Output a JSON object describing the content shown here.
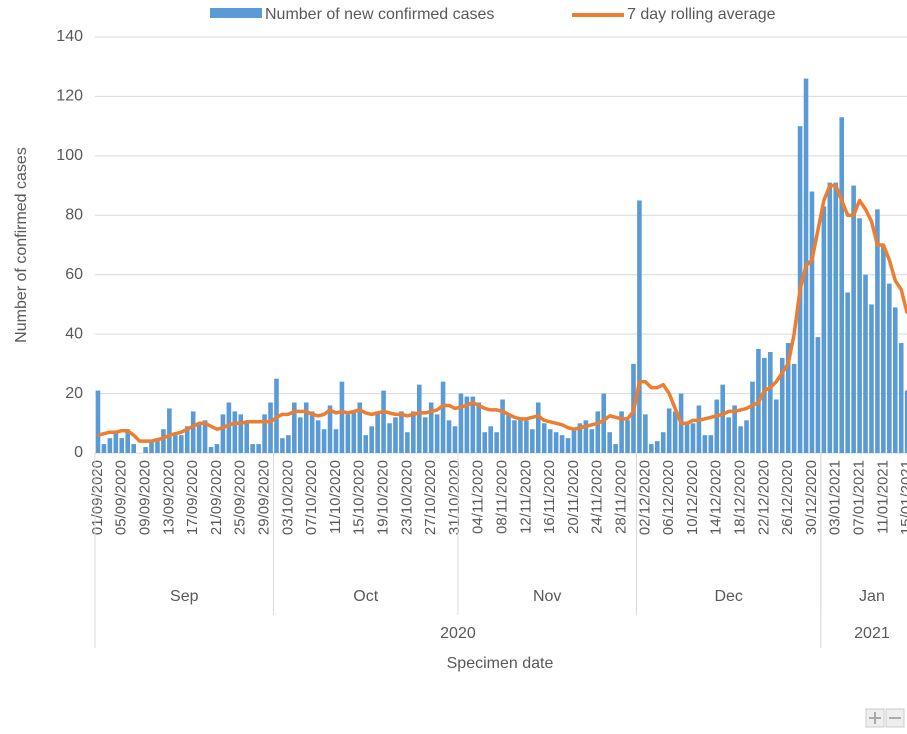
{
  "chart_data": {
    "type": "bar_line",
    "y_label": "Number of confirmed cases",
    "x_label": "Specimen date",
    "ylim": [
      0,
      140
    ],
    "yticks": [
      0,
      20,
      40,
      60,
      80,
      100,
      120,
      140
    ],
    "grid": true,
    "legend": "top",
    "categories": [
      "01/09/2020",
      null,
      null,
      null,
      "05/09/2020",
      null,
      null,
      null,
      "09/09/2020",
      null,
      null,
      null,
      "13/09/2020",
      null,
      null,
      null,
      "17/09/2020",
      null,
      null,
      null,
      "21/09/2020",
      null,
      null,
      null,
      "25/09/2020",
      null,
      null,
      null,
      "29/09/2020",
      null,
      null,
      null,
      "03/10/2020",
      null,
      null,
      null,
      "07/10/2020",
      null,
      null,
      null,
      "11/10/2020",
      null,
      null,
      null,
      "15/10/2020",
      null,
      null,
      null,
      "19/10/2020",
      null,
      null,
      null,
      "23/10/2020",
      null,
      null,
      null,
      "27/10/2020",
      null,
      null,
      null,
      "31/10/2020",
      null,
      null,
      null,
      "04/11/2020",
      null,
      null,
      null,
      "08/11/2020",
      null,
      null,
      null,
      "12/11/2020",
      null,
      null,
      null,
      "16/11/2020",
      null,
      null,
      null,
      "20/11/2020",
      null,
      null,
      null,
      "24/11/2020",
      null,
      null,
      null,
      "28/11/2020",
      null,
      null,
      null,
      "02/12/2020",
      null,
      null,
      null,
      "06/12/2020",
      null,
      null,
      null,
      "10/12/2020",
      null,
      null,
      null,
      "14/12/2020",
      null,
      null,
      null,
      "18/12/2020",
      null,
      null,
      null,
      "22/12/2020",
      null,
      null,
      null,
      "26/12/2020",
      null,
      null,
      null,
      "30/12/2020",
      null,
      null,
      null,
      "03/01/2021",
      null,
      null,
      null,
      "07/01/2021",
      null,
      null,
      null,
      "11/01/2021",
      null,
      null,
      null,
      "15/01/2021"
    ],
    "month_groups": [
      {
        "label": "Sep",
        "span": 30
      },
      {
        "label": "Oct",
        "span": 31
      },
      {
        "label": "Nov",
        "span": 30
      },
      {
        "label": "Dec",
        "span": 31
      },
      {
        "label": "Jan",
        "span": 15
      }
    ],
    "year_groups": [
      {
        "label": "2020",
        "span": 122
      },
      {
        "label": "2021",
        "span": 15
      }
    ],
    "series": [
      {
        "name": "Number of new confirmed cases",
        "kind": "bar",
        "color": "#5b9bd5",
        "values": [
          21,
          3,
          5,
          7,
          5,
          8,
          3,
          0,
          2,
          4,
          4,
          8,
          15,
          6,
          6,
          9,
          14,
          10,
          11,
          2,
          3,
          13,
          17,
          14,
          13,
          10,
          3,
          3,
          13,
          17,
          25,
          5,
          6,
          17,
          12,
          17,
          14,
          11,
          8,
          16,
          8,
          24,
          13,
          14,
          17,
          6,
          9,
          14,
          21,
          10,
          12,
          14,
          7,
          14,
          23,
          12,
          17,
          13,
          24,
          11,
          9,
          20,
          19,
          19,
          17,
          7,
          9,
          7,
          18,
          13,
          11,
          12,
          11,
          8,
          17,
          10,
          8,
          7,
          6,
          5,
          8,
          10,
          11,
          8,
          14,
          20,
          7,
          3,
          14,
          11,
          30,
          85,
          13,
          3,
          4,
          7,
          15,
          14,
          20,
          10,
          10,
          16,
          6,
          6,
          18,
          23,
          12,
          16,
          9,
          11,
          24,
          35,
          32,
          34,
          18,
          32,
          37,
          30,
          110,
          126,
          88,
          39,
          83,
          91,
          91,
          113,
          54,
          90,
          79,
          60,
          50,
          82,
          70,
          57,
          49,
          37,
          21
        ]
      },
      {
        "name": "7 day rolling average",
        "kind": "line",
        "color": "#ed7d31",
        "values": [
          6,
          6.5,
          7,
          7,
          7.5,
          7.5,
          6,
          4,
          4,
          4,
          4.5,
          5,
          6,
          6.5,
          7,
          8,
          9,
          10,
          10,
          9,
          8,
          8.5,
          9.5,
          10,
          10,
          10.5,
          10.5,
          10.5,
          10.5,
          10.5,
          12,
          13,
          13,
          14,
          14,
          14,
          13,
          12.5,
          13,
          14.5,
          13.5,
          14,
          13.5,
          14,
          14.5,
          13.5,
          13,
          13.5,
          14,
          13.5,
          13,
          13,
          12.5,
          13,
          13.5,
          13.5,
          14,
          14.5,
          16,
          16,
          15,
          15.5,
          16,
          17,
          16,
          15,
          14.5,
          14.5,
          14,
          13,
          12,
          11.5,
          11.5,
          12,
          12.5,
          11,
          10.5,
          10,
          9.5,
          8.5,
          8,
          8.5,
          9,
          9.5,
          10,
          11,
          12.5,
          12,
          11.5,
          11.5,
          14,
          24,
          24,
          22,
          22,
          23,
          20,
          15,
          10,
          10,
          11,
          11,
          11.5,
          12,
          12.5,
          13,
          14,
          14,
          14.5,
          15,
          16,
          17,
          21,
          22,
          24,
          27,
          30,
          40,
          55,
          63,
          65,
          75,
          85,
          90,
          90,
          85,
          80,
          80,
          85,
          82,
          78,
          70,
          70,
          65,
          58,
          55,
          47
        ]
      }
    ]
  }
}
